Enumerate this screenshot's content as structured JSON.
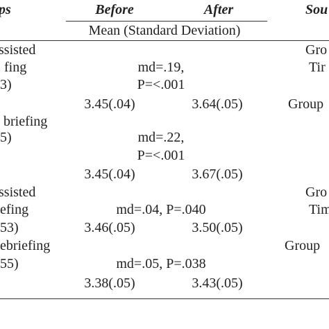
{
  "header": {
    "groups": "ps",
    "before": "Before",
    "after": "After",
    "source": "Sou",
    "subheader": "Mean (Standard Deviation)"
  },
  "groups": [
    {
      "label_lines": [
        "ssisted",
        "fing",
        "3)"
      ],
      "stats_lines": [
        "md=.19,",
        "P=<.001"
      ],
      "before": "3.45(.04)",
      "after": "3.64(.05)",
      "source_lines": [
        "Gro",
        "Tir",
        "Group"
      ]
    },
    {
      "label_lines": [
        "briefing",
        "5)"
      ],
      "stats_lines": [
        "md=.22,",
        "P=<.001"
      ],
      "before": "3.45(.04)",
      "after": "3.67(.05)"
    },
    {
      "label_lines": [
        "ssisted",
        "efing",
        "53)"
      ],
      "stats_lines": [
        "md=.04, P=.040"
      ],
      "before": "3.46(.05)",
      "after": "3.50(.05)",
      "source_lines": [
        "Gro",
        "Tim"
      ]
    },
    {
      "label_lines": [
        "ebriefing",
        "55)"
      ],
      "stats_lines": [
        "md=.05, P=.038"
      ],
      "before": "3.38(.05)",
      "after": "3.43(.05)",
      "source_lines": [
        "Group"
      ]
    }
  ]
}
